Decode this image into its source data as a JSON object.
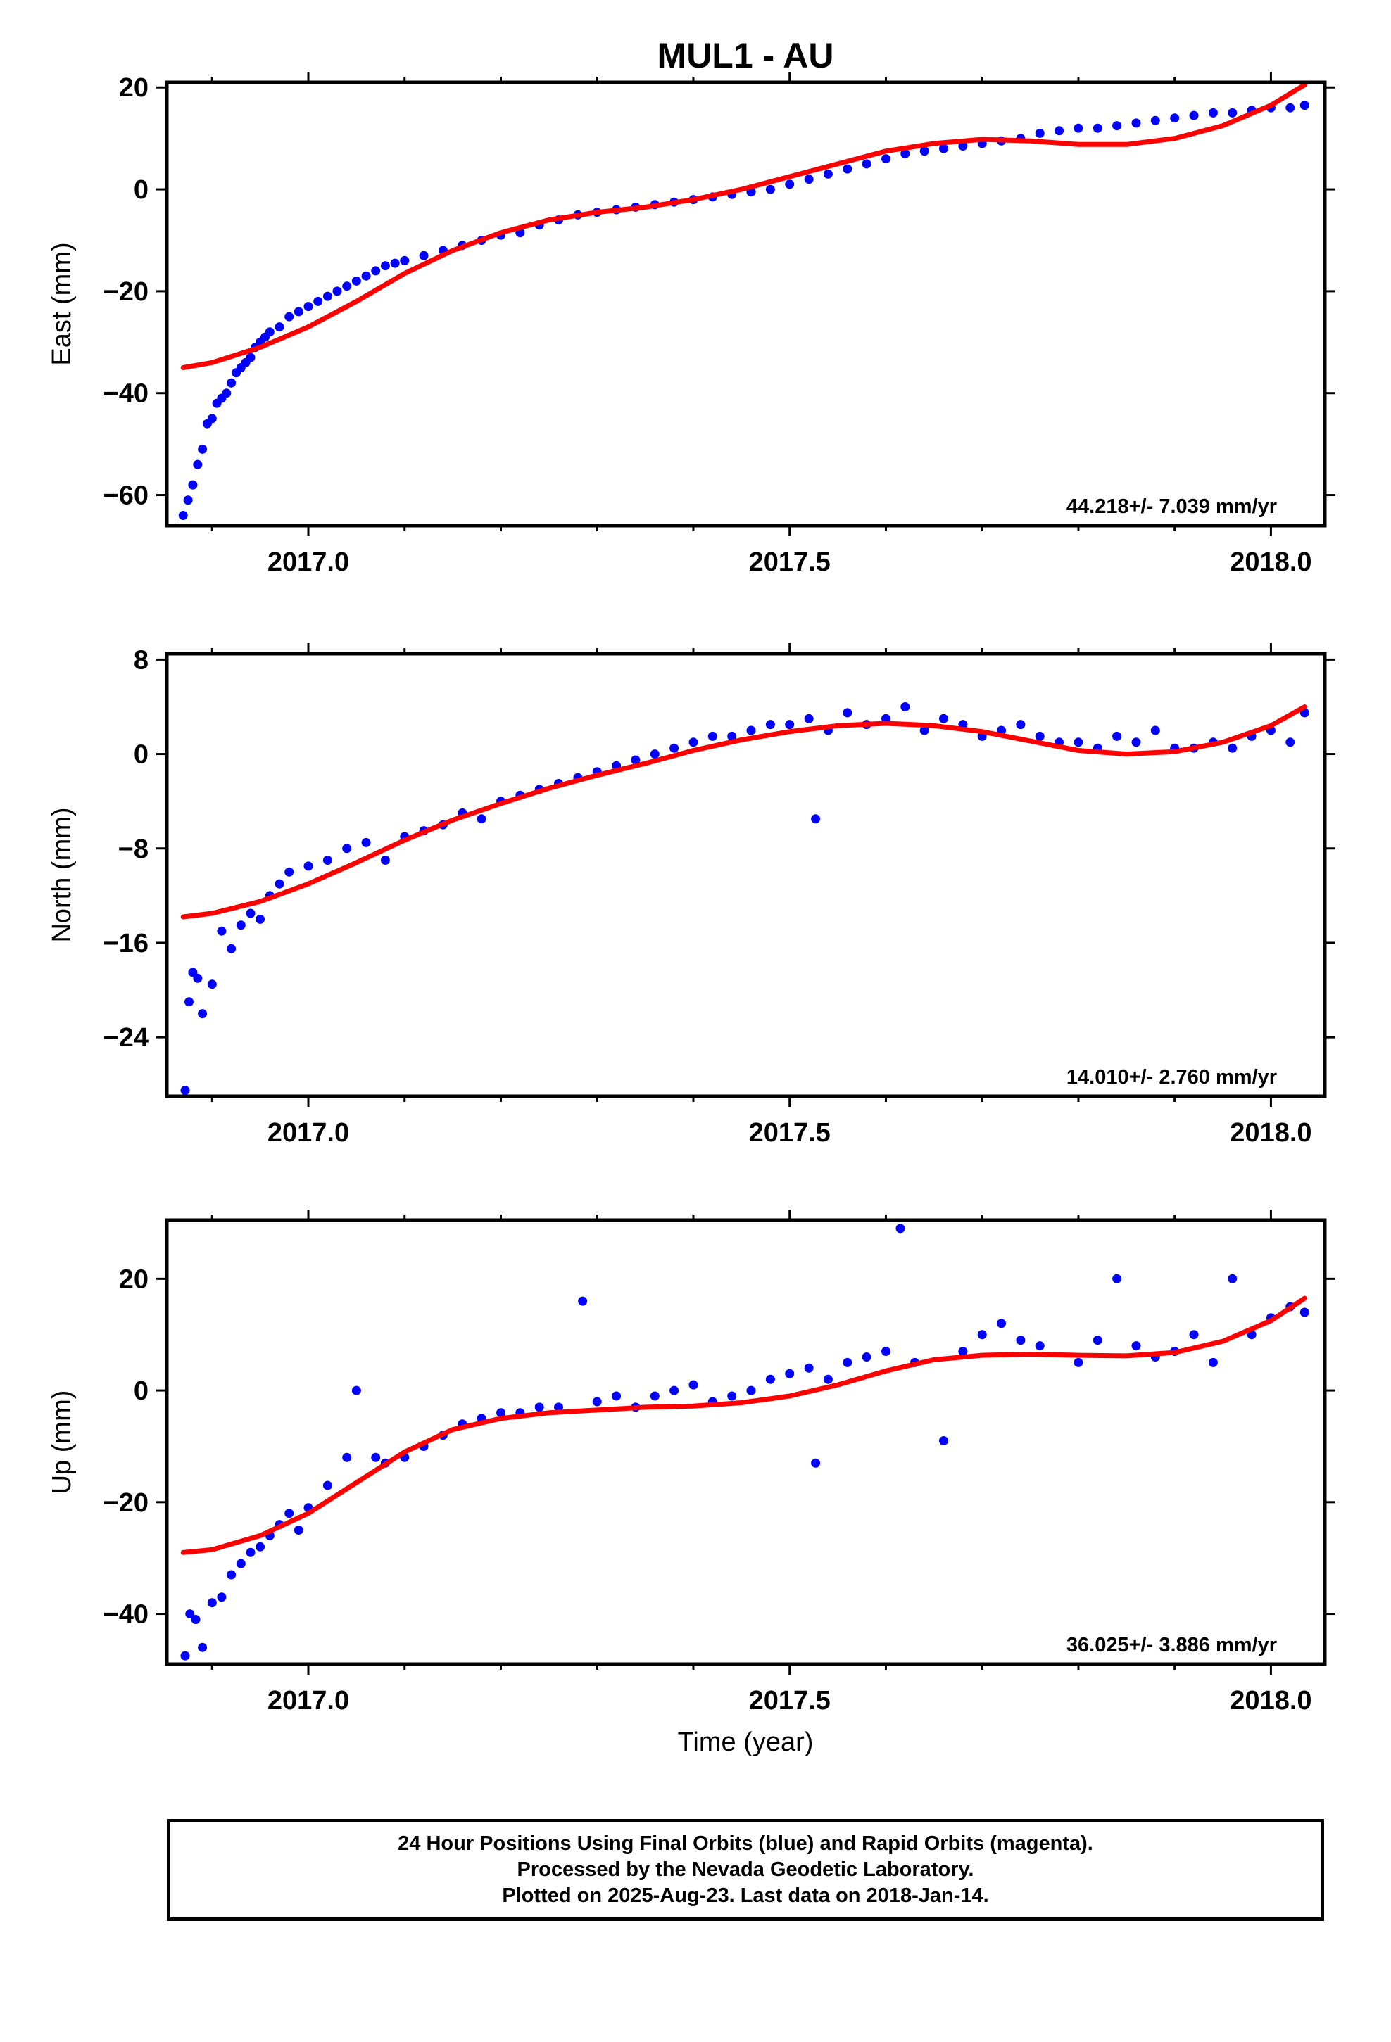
{
  "figure": {
    "title": "MUL1 - AU",
    "xlabel": "Time (year)",
    "footer": [
      "24 Hour Positions Using Final Orbits (blue) and Rapid Orbits (magenta).",
      "Processed by the Nevada Geodetic Laboratory.",
      "Plotted on 2025-Aug-23. Last data on 2018-Jan-14."
    ]
  },
  "colors": {
    "points": "#0000ff",
    "fit": "#ff0000",
    "axis": "#000000"
  },
  "chart_data": [
    {
      "type": "scatter",
      "ylabel": "East (mm)",
      "rate_label": "44.218+/- 7.039 mm/yr",
      "xlim": [
        2016.853,
        2018.056
      ],
      "ylim": [
        -66,
        21
      ],
      "xticks": [
        2017.0,
        2017.5,
        2018.0
      ],
      "xtick_labels": [
        "2017.0",
        "2017.5",
        "2018.0"
      ],
      "yticks": [
        20,
        0,
        -20,
        -40,
        -60
      ],
      "ytick_labels": [
        "20",
        "0",
        "−20",
        "−40",
        "−60"
      ],
      "grid": false,
      "series": [
        {
          "role": "positions",
          "x": [
            2016.87,
            2016.875,
            2016.88,
            2016.885,
            2016.89,
            2016.895,
            2016.9,
            2016.905,
            2016.91,
            2016.915,
            2016.92,
            2016.925,
            2016.93,
            2016.935,
            2016.94,
            2016.945,
            2016.95,
            2016.955,
            2016.96,
            2016.97,
            2016.98,
            2016.99,
            2017.0,
            2017.01,
            2017.02,
            2017.03,
            2017.04,
            2017.05,
            2017.06,
            2017.07,
            2017.08,
            2017.09,
            2017.1,
            2017.12,
            2017.14,
            2017.16,
            2017.18,
            2017.2,
            2017.22,
            2017.24,
            2017.26,
            2017.28,
            2017.3,
            2017.32,
            2017.34,
            2017.36,
            2017.38,
            2017.4,
            2017.42,
            2017.44,
            2017.46,
            2017.48,
            2017.5,
            2017.52,
            2017.54,
            2017.56,
            2017.58,
            2017.6,
            2017.62,
            2017.64,
            2017.66,
            2017.68,
            2017.7,
            2017.72,
            2017.74,
            2017.76,
            2017.78,
            2017.8,
            2017.82,
            2017.84,
            2017.86,
            2017.88,
            2017.9,
            2017.92,
            2017.94,
            2017.96,
            2017.98,
            2018.0,
            2018.02,
            2018.035
          ],
          "y": [
            -64,
            -61,
            -58,
            -54,
            -51,
            -46,
            -45,
            -42,
            -41,
            -40,
            -38,
            -36,
            -35,
            -34,
            -33,
            -31,
            -30,
            -29,
            -28,
            -27,
            -25,
            -24,
            -23,
            -22,
            -21,
            -20,
            -19,
            -18,
            -17,
            -16,
            -15,
            -14.5,
            -14,
            -13,
            -12,
            -11,
            -10,
            -9,
            -8.5,
            -7,
            -6,
            -5,
            -4.5,
            -4,
            -3.5,
            -3,
            -2.5,
            -2,
            -1.5,
            -1,
            -0.5,
            0,
            1,
            2,
            3,
            4,
            5,
            6,
            7,
            7.5,
            8,
            8.5,
            9,
            9.5,
            10,
            11,
            11.5,
            12,
            12,
            12.5,
            13,
            13.5,
            14,
            14.5,
            15,
            15,
            15.5,
            16,
            16,
            16.5
          ]
        },
        {
          "role": "fit",
          "x": [
            2016.87,
            2016.9,
            2016.95,
            2017.0,
            2017.05,
            2017.1,
            2017.15,
            2017.2,
            2017.25,
            2017.3,
            2017.35,
            2017.4,
            2017.45,
            2017.5,
            2017.55,
            2017.6,
            2017.65,
            2017.7,
            2017.75,
            2017.8,
            2017.85,
            2017.9,
            2017.95,
            2018.0,
            2018.035
          ],
          "y": [
            -35,
            -34,
            -31,
            -27,
            -22,
            -16.5,
            -12,
            -8.5,
            -6,
            -4.5,
            -3.5,
            -2,
            0,
            2.5,
            5,
            7.5,
            9,
            9.8,
            9.5,
            8.8,
            8.8,
            10,
            12.5,
            16.5,
            20.5
          ]
        }
      ]
    },
    {
      "type": "scatter",
      "ylabel": "North (mm)",
      "rate_label": "14.010+/- 2.760 mm/yr",
      "xlim": [
        2016.853,
        2018.056
      ],
      "ylim": [
        -29,
        8.5
      ],
      "xticks": [
        2017.0,
        2017.5,
        2018.0
      ],
      "xtick_labels": [
        "2017.0",
        "2017.5",
        "2018.0"
      ],
      "yticks": [
        8,
        0,
        -8,
        -16,
        -24
      ],
      "ytick_labels": [
        "8",
        "0",
        "−8",
        "−16",
        "−24"
      ],
      "grid": false,
      "series": [
        {
          "role": "positions",
          "x": [
            2016.872,
            2016.876,
            2016.88,
            2016.885,
            2016.89,
            2016.9,
            2016.91,
            2016.92,
            2016.93,
            2016.94,
            2016.95,
            2016.96,
            2016.97,
            2016.98,
            2017.0,
            2017.02,
            2017.04,
            2017.06,
            2017.08,
            2017.1,
            2017.12,
            2017.14,
            2017.16,
            2017.18,
            2017.2,
            2017.22,
            2017.24,
            2017.26,
            2017.28,
            2017.3,
            2017.32,
            2017.34,
            2017.36,
            2017.38,
            2017.4,
            2017.42,
            2017.44,
            2017.46,
            2017.48,
            2017.5,
            2017.52,
            2017.527,
            2017.54,
            2017.56,
            2017.58,
            2017.6,
            2017.62,
            2017.64,
            2017.66,
            2017.68,
            2017.7,
            2017.72,
            2017.74,
            2017.76,
            2017.78,
            2017.8,
            2017.82,
            2017.84,
            2017.86,
            2017.88,
            2017.9,
            2017.92,
            2017.94,
            2017.96,
            2017.98,
            2018.0,
            2018.02,
            2018.035
          ],
          "y": [
            -28.5,
            -21,
            -18.5,
            -19,
            -22,
            -19.5,
            -15,
            -16.5,
            -14.5,
            -13.5,
            -14,
            -12,
            -11,
            -10,
            -9.5,
            -9,
            -8,
            -7.5,
            -9,
            -7,
            -6.5,
            -6,
            -5,
            -5.5,
            -4,
            -3.5,
            -3,
            -2.5,
            -2,
            -1.5,
            -1,
            -0.5,
            0,
            0.5,
            1,
            1.5,
            1.5,
            2,
            2.5,
            2.5,
            3,
            -5.5,
            2,
            3.5,
            2.5,
            3,
            4,
            2,
            3,
            2.5,
            1.5,
            2,
            2.5,
            1.5,
            1,
            1,
            0.5,
            1.5,
            1,
            2,
            0.5,
            0.5,
            1,
            0.5,
            1.5,
            2,
            1,
            3.5
          ]
        },
        {
          "role": "fit",
          "x": [
            2016.87,
            2016.9,
            2016.95,
            2017.0,
            2017.05,
            2017.1,
            2017.15,
            2017.2,
            2017.25,
            2017.3,
            2017.35,
            2017.4,
            2017.45,
            2017.5,
            2017.55,
            2017.6,
            2017.65,
            2017.7,
            2017.75,
            2017.8,
            2017.85,
            2017.9,
            2017.95,
            2018.0,
            2018.035
          ],
          "y": [
            -13.8,
            -13.5,
            -12.5,
            -11,
            -9.2,
            -7.3,
            -5.6,
            -4.2,
            -2.9,
            -1.8,
            -0.8,
            0.3,
            1.2,
            1.9,
            2.4,
            2.6,
            2.4,
            1.9,
            1.1,
            0.3,
            0,
            0.2,
            1,
            2.4,
            4
          ]
        }
      ]
    },
    {
      "type": "scatter",
      "ylabel": "Up (mm)",
      "rate_label": "36.025+/- 3.886 mm/yr",
      "xlim": [
        2016.853,
        2018.056
      ],
      "ylim": [
        -49,
        30.5
      ],
      "xticks": [
        2017.0,
        2017.5,
        2018.0
      ],
      "xtick_labels": [
        "2017.0",
        "2017.5",
        "2018.0"
      ],
      "yticks": [
        20,
        0,
        -20,
        -40
      ],
      "ytick_labels": [
        "20",
        "0",
        "−20",
        "−40"
      ],
      "grid": false,
      "series": [
        {
          "role": "positions",
          "x": [
            2016.872,
            2016.877,
            2016.883,
            2016.89,
            2016.9,
            2016.91,
            2016.92,
            2016.93,
            2016.94,
            2016.95,
            2016.96,
            2016.97,
            2016.98,
            2016.99,
            2017.0,
            2017.02,
            2017.04,
            2017.05,
            2017.07,
            2017.08,
            2017.1,
            2017.12,
            2017.14,
            2017.16,
            2017.18,
            2017.2,
            2017.22,
            2017.24,
            2017.26,
            2017.285,
            2017.3,
            2017.32,
            2017.34,
            2017.36,
            2017.38,
            2017.4,
            2017.42,
            2017.44,
            2017.46,
            2017.48,
            2017.5,
            2017.52,
            2017.527,
            2017.54,
            2017.56,
            2017.58,
            2017.6,
            2017.615,
            2017.63,
            2017.66,
            2017.68,
            2017.7,
            2017.72,
            2017.74,
            2017.76,
            2017.8,
            2017.82,
            2017.84,
            2017.86,
            2017.88,
            2017.9,
            2017.92,
            2017.94,
            2017.96,
            2017.98,
            2018.0,
            2018.02,
            2018.035
          ],
          "y": [
            -47.5,
            -40,
            -41,
            -46,
            -38,
            -37,
            -33,
            -31,
            -29,
            -28,
            -26,
            -24,
            -22,
            -25,
            -21,
            -17,
            -12,
            0,
            -12,
            -13,
            -12,
            -10,
            -8,
            -6,
            -5,
            -4,
            -4,
            -3,
            -3,
            16,
            -2,
            -1,
            -3,
            -1,
            0,
            1,
            -2,
            -1,
            0,
            2,
            3,
            4,
            -13,
            2,
            5,
            6,
            7,
            29,
            5,
            -9,
            7,
            10,
            12,
            9,
            8,
            5,
            9,
            20,
            8,
            6,
            7,
            10,
            5,
            20,
            10,
            13,
            15,
            14
          ]
        },
        {
          "role": "fit",
          "x": [
            2016.87,
            2016.9,
            2016.95,
            2017.0,
            2017.05,
            2017.1,
            2017.15,
            2017.2,
            2017.25,
            2017.3,
            2017.35,
            2017.4,
            2017.45,
            2017.5,
            2017.55,
            2017.6,
            2017.65,
            2017.7,
            2017.75,
            2017.8,
            2017.85,
            2017.9,
            2017.95,
            2018.0,
            2018.035
          ],
          "y": [
            -29,
            -28.5,
            -26,
            -22,
            -16.5,
            -11,
            -7,
            -5,
            -4,
            -3.5,
            -3,
            -2.8,
            -2.2,
            -1,
            1,
            3.5,
            5.5,
            6.3,
            6.5,
            6.3,
            6.2,
            6.8,
            8.8,
            12.5,
            16.5
          ]
        }
      ]
    }
  ]
}
